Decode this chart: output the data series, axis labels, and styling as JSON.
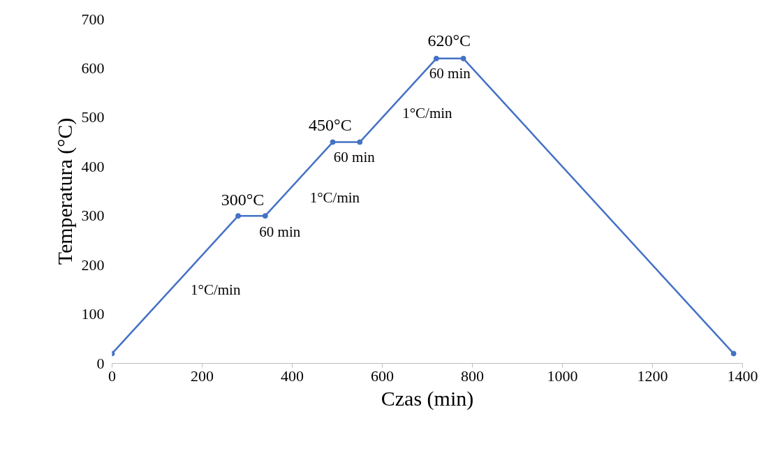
{
  "chart_data": {
    "type": "line",
    "xlabel": "Czas (min)",
    "ylabel": "Temperatura (°C)",
    "x": [
      0,
      280,
      340,
      490,
      550,
      720,
      780,
      1380
    ],
    "series": [
      {
        "color": "#4472c4",
        "values": [
          20,
          300,
          300,
          450,
          450,
          620,
          620,
          20
        ]
      }
    ],
    "xlim": [
      0,
      1400
    ],
    "xticks": [
      0,
      200,
      400,
      600,
      800,
      1000,
      1200,
      1400
    ],
    "ylim": [
      0,
      700
    ],
    "yticks": [
      0,
      100,
      200,
      300,
      400,
      500,
      600,
      700
    ],
    "grid": false,
    "marker": "circle",
    "line_style": "solid",
    "annotations": [
      {
        "text": "1°C/min",
        "x": 160,
        "y": 180
      },
      {
        "text": "300°C",
        "x": 310,
        "y": 300
      },
      {
        "text": "60 min",
        "x": 340,
        "y": 300
      },
      {
        "text": "1°C/min",
        "x": 420,
        "y": 380
      },
      {
        "text": "450°C",
        "x": 520,
        "y": 450
      },
      {
        "text": "60 min",
        "x": 550,
        "y": 450
      },
      {
        "text": "1°C/min",
        "x": 630,
        "y": 530
      },
      {
        "text": "620°C",
        "x": 750,
        "y": 620
      },
      {
        "text": "60 min",
        "x": 750,
        "y": 620
      }
    ]
  }
}
